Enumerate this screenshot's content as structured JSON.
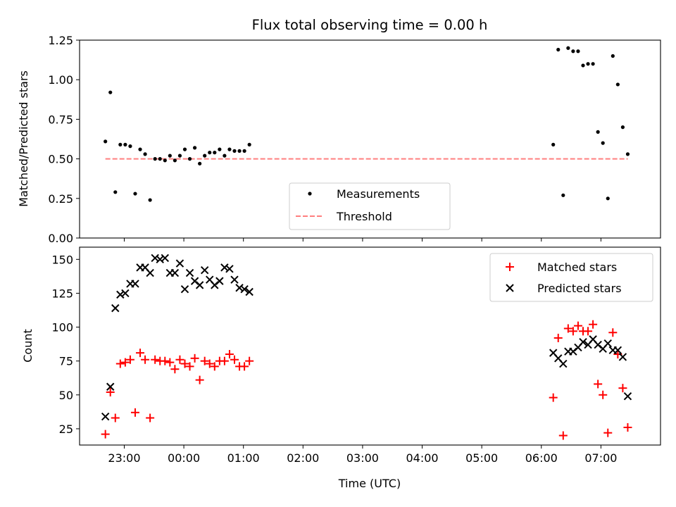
{
  "title": "Flux total observing time = 0.00 h",
  "colors": {
    "measurements": "#000000",
    "threshold": "#ff7f7f",
    "matched": "#ff0000",
    "predicted": "#000000"
  },
  "chart_data": [
    {
      "type": "scatter",
      "ylabel": "Matched/Predicted stars",
      "ylim": [
        0,
        1.25
      ],
      "yticks": [
        "0.00",
        "0.25",
        "0.50",
        "0.75",
        "1.00",
        "1.25"
      ],
      "xlim": [
        "22:15",
        "08:00"
      ],
      "grid": false,
      "legend": "bottom-center",
      "series": [
        {
          "name": "Measurements",
          "marker": "dot",
          "points": [
            [
              "22:41",
              0.61
            ],
            [
              "22:46",
              0.92
            ],
            [
              "22:51",
              0.29
            ],
            [
              "22:56",
              0.59
            ],
            [
              "23:01",
              0.59
            ],
            [
              "23:06",
              0.58
            ],
            [
              "23:11",
              0.28
            ],
            [
              "23:16",
              0.56
            ],
            [
              "23:21",
              0.53
            ],
            [
              "23:26",
              0.24
            ],
            [
              "23:31",
              0.5
            ],
            [
              "23:36",
              0.5
            ],
            [
              "23:41",
              0.49
            ],
            [
              "23:46",
              0.52
            ],
            [
              "23:51",
              0.49
            ],
            [
              "23:56",
              0.52
            ],
            [
              "00:01",
              0.56
            ],
            [
              "00:06",
              0.5
            ],
            [
              "00:11",
              0.57
            ],
            [
              "00:16",
              0.47
            ],
            [
              "00:21",
              0.52
            ],
            [
              "00:26",
              0.54
            ],
            [
              "00:31",
              0.54
            ],
            [
              "00:36",
              0.56
            ],
            [
              "00:41",
              0.52
            ],
            [
              "00:46",
              0.56
            ],
            [
              "00:51",
              0.55
            ],
            [
              "00:56",
              0.55
            ],
            [
              "01:01",
              0.55
            ],
            [
              "01:06",
              0.59
            ],
            [
              "06:12",
              0.59
            ],
            [
              "06:17",
              1.19
            ],
            [
              "06:22",
              0.27
            ],
            [
              "06:27",
              1.2
            ],
            [
              "06:32",
              1.18
            ],
            [
              "06:37",
              1.18
            ],
            [
              "06:42",
              1.09
            ],
            [
              "06:47",
              1.1
            ],
            [
              "06:52",
              1.1
            ],
            [
              "06:57",
              0.67
            ],
            [
              "07:02",
              0.6
            ],
            [
              "07:07",
              0.25
            ],
            [
              "07:12",
              1.15
            ],
            [
              "07:17",
              0.97
            ],
            [
              "07:22",
              0.7
            ],
            [
              "07:27",
              0.53
            ]
          ]
        },
        {
          "name": "Threshold",
          "style": "dashed",
          "points": [
            [
              "22:41",
              0.5
            ],
            [
              "07:27",
              0.5
            ]
          ]
        }
      ]
    },
    {
      "type": "scatter",
      "xlabel": "Time (UTC)",
      "ylabel": "Count",
      "ylim": [
        13,
        159
      ],
      "yticks": [
        "25",
        "50",
        "75",
        "100",
        "125",
        "150"
      ],
      "xlim": [
        "22:15",
        "08:00"
      ],
      "xticks": [
        "23:00",
        "00:00",
        "01:00",
        "02:00",
        "03:00",
        "04:00",
        "05:00",
        "06:00",
        "07:00"
      ],
      "grid": false,
      "legend": "top-right",
      "series": [
        {
          "name": "Matched stars",
          "marker": "plus",
          "points": [
            [
              "22:41",
              21
            ],
            [
              "22:46",
              52
            ],
            [
              "22:51",
              33
            ],
            [
              "22:56",
              73
            ],
            [
              "23:01",
              74
            ],
            [
              "23:06",
              76
            ],
            [
              "23:11",
              37
            ],
            [
              "23:16",
              81
            ],
            [
              "23:21",
              76
            ],
            [
              "23:26",
              33
            ],
            [
              "23:31",
              76
            ],
            [
              "23:36",
              75
            ],
            [
              "23:41",
              75
            ],
            [
              "23:46",
              74
            ],
            [
              "23:51",
              69
            ],
            [
              "23:56",
              76
            ],
            [
              "00:01",
              73
            ],
            [
              "00:06",
              71
            ],
            [
              "00:11",
              77
            ],
            [
              "00:16",
              61
            ],
            [
              "00:21",
              75
            ],
            [
              "00:26",
              73
            ],
            [
              "00:31",
              71
            ],
            [
              "00:36",
              75
            ],
            [
              "00:41",
              75
            ],
            [
              "00:46",
              80
            ],
            [
              "00:51",
              76
            ],
            [
              "00:56",
              71
            ],
            [
              "01:01",
              71
            ],
            [
              "01:06",
              75
            ],
            [
              "06:12",
              48
            ],
            [
              "06:17",
              92
            ],
            [
              "06:22",
              20
            ],
            [
              "06:27",
              99
            ],
            [
              "06:32",
              97
            ],
            [
              "06:37",
              101
            ],
            [
              "06:42",
              97
            ],
            [
              "06:47",
              97
            ],
            [
              "06:52",
              102
            ],
            [
              "06:57",
              58
            ],
            [
              "07:02",
              50
            ],
            [
              "07:07",
              22
            ],
            [
              "07:12",
              96
            ],
            [
              "07:17",
              80
            ],
            [
              "07:22",
              55
            ],
            [
              "07:27",
              26
            ]
          ]
        },
        {
          "name": "Predicted stars",
          "marker": "x",
          "points": [
            [
              "22:41",
              34
            ],
            [
              "22:46",
              56
            ],
            [
              "22:51",
              114
            ],
            [
              "22:56",
              124
            ],
            [
              "23:01",
              125
            ],
            [
              "23:06",
              132
            ],
            [
              "23:11",
              132
            ],
            [
              "23:16",
              144
            ],
            [
              "23:21",
              144
            ],
            [
              "23:26",
              140
            ],
            [
              "23:31",
              151
            ],
            [
              "23:36",
              150
            ],
            [
              "23:41",
              151
            ],
            [
              "23:46",
              140
            ],
            [
              "23:51",
              140
            ],
            [
              "23:56",
              147
            ],
            [
              "00:01",
              128
            ],
            [
              "00:06",
              140
            ],
            [
              "00:11",
              134
            ],
            [
              "00:16",
              131
            ],
            [
              "00:21",
              142
            ],
            [
              "00:26",
              135
            ],
            [
              "00:31",
              131
            ],
            [
              "00:36",
              134
            ],
            [
              "00:41",
              144
            ],
            [
              "00:46",
              143
            ],
            [
              "00:51",
              135
            ],
            [
              "00:56",
              129
            ],
            [
              "01:01",
              128
            ],
            [
              "01:06",
              126
            ],
            [
              "06:12",
              81
            ],
            [
              "06:17",
              77
            ],
            [
              "06:22",
              73
            ],
            [
              "06:27",
              82
            ],
            [
              "06:32",
              82
            ],
            [
              "06:37",
              85
            ],
            [
              "06:42",
              89
            ],
            [
              "06:47",
              87
            ],
            [
              "06:52",
              91
            ],
            [
              "06:57",
              87
            ],
            [
              "07:02",
              84
            ],
            [
              "07:07",
              88
            ],
            [
              "07:12",
              83
            ],
            [
              "07:17",
              83
            ],
            [
              "07:22",
              78
            ],
            [
              "07:27",
              49
            ]
          ]
        }
      ]
    }
  ]
}
